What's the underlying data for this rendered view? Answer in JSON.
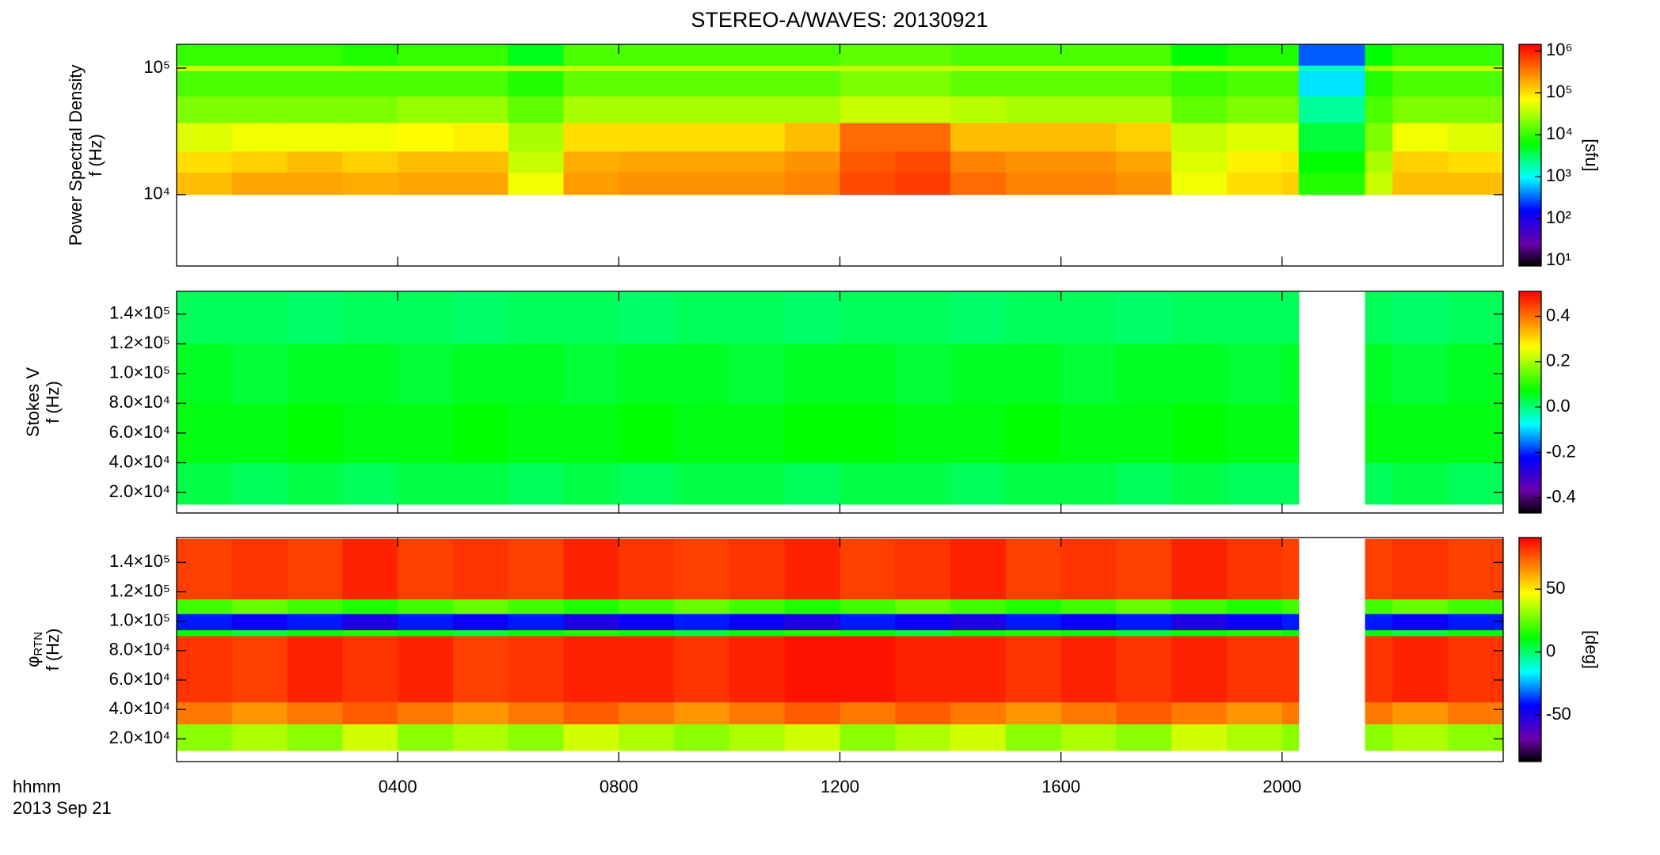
{
  "chart_data": [
    {
      "type": "heatmap",
      "title": "STEREO-A/WAVES: 20130921",
      "quantity": "Power Spectral Density",
      "ylabel": "f (Hz)",
      "xlim": [
        0,
        24
      ],
      "xticks": [
        4,
        8,
        12,
        16,
        20
      ],
      "ylog": true,
      "ylim": [
        2730,
        154000
      ],
      "yticks": [
        {
          "value": 10000,
          "label": "10⁴"
        },
        {
          "value": 100000,
          "label": "10⁵"
        }
      ],
      "x_edges": [
        0,
        1,
        2,
        3,
        4,
        5,
        6,
        7,
        8,
        9,
        10,
        11,
        12,
        13,
        14,
        15,
        16,
        17,
        18,
        19,
        20,
        20.3,
        21.5,
        22,
        23,
        24
      ],
      "y_edges": [
        10000,
        15000,
        22000,
        37000,
        60000,
        95000,
        105000,
        154000
      ],
      "z": [
        [
          150000,
          200000,
          200000,
          180000,
          200000,
          200000,
          60000,
          220000,
          250000,
          250000,
          250000,
          300000,
          600000,
          700000,
          400000,
          300000,
          300000,
          250000,
          60000,
          100000,
          120000,
          8000,
          40000,
          150000,
          150000
        ],
        [
          100000,
          120000,
          150000,
          120000,
          150000,
          150000,
          40000,
          180000,
          200000,
          200000,
          200000,
          250000,
          500000,
          600000,
          300000,
          250000,
          250000,
          200000,
          50000,
          80000,
          90000,
          6000,
          30000,
          120000,
          100000
        ],
        [
          50000,
          60000,
          60000,
          60000,
          70000,
          80000,
          30000,
          100000,
          100000,
          100000,
          100000,
          150000,
          400000,
          400000,
          150000,
          150000,
          150000,
          120000,
          40000,
          50000,
          50000,
          4000,
          20000,
          60000,
          50000
        ],
        [
          20000,
          20000,
          20000,
          20000,
          25000,
          25000,
          15000,
          30000,
          30000,
          30000,
          30000,
          30000,
          40000,
          40000,
          35000,
          30000,
          30000,
          30000,
          15000,
          20000,
          20000,
          2000,
          12000,
          20000,
          20000
        ],
        [
          12000,
          12000,
          12000,
          12000,
          12000,
          12000,
          8000,
          15000,
          15000,
          15000,
          15000,
          15000,
          20000,
          20000,
          15000,
          15000,
          15000,
          15000,
          10000,
          12000,
          12000,
          800,
          8000,
          12000,
          12000
        ],
        [
          40000,
          40000,
          40000,
          40000,
          40000,
          40000,
          40000,
          40000,
          40000,
          40000,
          40000,
          40000,
          40000,
          40000,
          40000,
          40000,
          40000,
          40000,
          40000,
          40000,
          40000,
          1500,
          30000,
          40000,
          40000
        ],
        [
          10000,
          10000,
          10000,
          8000,
          10000,
          10000,
          5000,
          12000,
          12000,
          12000,
          12000,
          12000,
          15000,
          15000,
          12000,
          12000,
          12000,
          12000,
          6000,
          8000,
          8000,
          300,
          6000,
          10000,
          10000
        ]
      ],
      "clog": true,
      "clim": [
        7.4,
        1430000
      ],
      "cticks": [
        {
          "value": 10,
          "label": "10¹"
        },
        {
          "value": 100,
          "label": "10²"
        },
        {
          "value": 1000,
          "label": "10³"
        },
        {
          "value": 10000,
          "label": "10⁴"
        },
        {
          "value": 100000,
          "label": "10⁵"
        },
        {
          "value": 1000000,
          "label": "10⁶"
        }
      ],
      "clabel": "[sfu]",
      "colorscale": [
        [
          0,
          "#000000"
        ],
        [
          0.1,
          "#6a00a8"
        ],
        [
          0.25,
          "#0000ff"
        ],
        [
          0.4,
          "#00ffff"
        ],
        [
          0.55,
          "#00ff00"
        ],
        [
          0.75,
          "#ffff00"
        ],
        [
          1,
          "#ff0000"
        ]
      ]
    },
    {
      "type": "heatmap",
      "quantity": "Stokes V",
      "ylabel": "f (Hz)",
      "xlim": [
        0,
        24
      ],
      "xticks": [
        4,
        8,
        12,
        16,
        20
      ],
      "ylog": false,
      "ylim": [
        6200,
        155300
      ],
      "yticks": [
        {
          "value": 20000,
          "label": "2.0×10⁴"
        },
        {
          "value": 40000,
          "label": "4.0×10⁴"
        },
        {
          "value": 60000,
          "label": "6.0×10⁴"
        },
        {
          "value": 80000,
          "label": "8.0×10⁴"
        },
        {
          "value": 100000,
          "label": "1.0×10⁵"
        },
        {
          "value": 120000,
          "label": "1.2×10⁵"
        },
        {
          "value": 140000,
          "label": "1.4×10⁵"
        }
      ],
      "x_edges": [
        0,
        1,
        2,
        3,
        4,
        5,
        6,
        7,
        8,
        9,
        10,
        11,
        12,
        13,
        14,
        15,
        16,
        17,
        18,
        19,
        20,
        20.3,
        21.5,
        22,
        23,
        24
      ],
      "y_edges": [
        12000,
        40000,
        80000,
        120000,
        155000
      ],
      "z": [
        [
          0.03,
          0.02,
          0.03,
          0.02,
          0.03,
          0.03,
          0.02,
          0.03,
          0.02,
          0.03,
          0.03,
          0.02,
          0.03,
          0.03,
          0.02,
          0.03,
          0.03,
          0.02,
          0.03,
          0.02,
          0.02,
          null,
          0.02,
          0.03,
          0.02
        ],
        [
          0.06,
          0.06,
          0.07,
          0.06,
          0.06,
          0.07,
          0.06,
          0.06,
          0.07,
          0.06,
          0.06,
          0.07,
          0.07,
          0.06,
          0.06,
          0.07,
          0.06,
          0.06,
          0.07,
          0.06,
          0.06,
          null,
          0.06,
          0.06,
          0.06
        ],
        [
          0.05,
          0.04,
          0.05,
          0.05,
          0.04,
          0.05,
          0.05,
          0.04,
          0.05,
          0.05,
          0.04,
          0.05,
          0.05,
          0.04,
          0.05,
          0.05,
          0.04,
          0.05,
          0.05,
          0.04,
          0.05,
          null,
          0.05,
          0.04,
          0.05
        ],
        [
          0.02,
          0.02,
          0.01,
          0.02,
          0.02,
          0.01,
          0.02,
          0.02,
          0.01,
          0.02,
          0.02,
          0.01,
          0.02,
          0.02,
          0.01,
          0.02,
          0.02,
          0.01,
          0.02,
          0.02,
          0.02,
          null,
          0.02,
          0.01,
          0.02
        ]
      ],
      "clog": false,
      "clim": [
        -0.467,
        0.51
      ],
      "cticks": [
        -0.4,
        -0.2,
        {
          "value": 0,
          "label": "0.0"
        },
        0.2,
        0.4
      ],
      "colorscale": [
        [
          0,
          "#000000"
        ],
        [
          0.1,
          "#6a00a8"
        ],
        [
          0.25,
          "#0000ff"
        ],
        [
          0.4,
          "#00ffff"
        ],
        [
          0.55,
          "#00ff00"
        ],
        [
          0.75,
          "#ffff00"
        ],
        [
          1,
          "#ff0000"
        ]
      ]
    },
    {
      "type": "heatmap",
      "quantity": "φ",
      "quantity_subscript": "RTN",
      "ylabel": "f (Hz)",
      "xlim": [
        0,
        24
      ],
      "xticks": [
        {
          "value": 4,
          "label": "0400"
        },
        {
          "value": 8,
          "label": "0800"
        },
        {
          "value": 12,
          "label": "1200"
        },
        {
          "value": 16,
          "label": "1600"
        },
        {
          "value": 20,
          "label": "2000"
        }
      ],
      "x_label": "hhmm",
      "x_sublabel": "2013 Sep 21",
      "ylog": false,
      "ylim": [
        4540,
        156900
      ],
      "yticks": [
        {
          "value": 20000,
          "label": "2.0×10⁴"
        },
        {
          "value": 40000,
          "label": "4.0×10⁴"
        },
        {
          "value": 60000,
          "label": "6.0×10⁴"
        },
        {
          "value": 80000,
          "label": "8.0×10⁴"
        },
        {
          "value": 100000,
          "label": "1.0×10⁵"
        },
        {
          "value": 120000,
          "label": "1.2×10⁵"
        },
        {
          "value": 140000,
          "label": "1.4×10⁵"
        }
      ],
      "x_edges": [
        0,
        1,
        2,
        3,
        4,
        5,
        6,
        7,
        8,
        9,
        10,
        11,
        12,
        13,
        14,
        15,
        16,
        17,
        18,
        19,
        20,
        20.3,
        21.5,
        22,
        23,
        24
      ],
      "y_edges": [
        12000,
        30000,
        45000,
        90000,
        94000,
        105000,
        115000,
        156000
      ],
      "z": [
        [
          30,
          35,
          30,
          40,
          30,
          35,
          30,
          40,
          35,
          30,
          35,
          40,
          30,
          35,
          40,
          30,
          35,
          30,
          40,
          35,
          30,
          null,
          30,
          35,
          30
        ],
        [
          70,
          65,
          70,
          75,
          70,
          65,
          70,
          75,
          70,
          65,
          70,
          75,
          70,
          75,
          70,
          65,
          70,
          75,
          70,
          65,
          70,
          null,
          70,
          65,
          70
        ],
        [
          82,
          80,
          85,
          82,
          85,
          80,
          82,
          85,
          85,
          82,
          85,
          88,
          88,
          85,
          85,
          82,
          85,
          82,
          85,
          82,
          82,
          null,
          82,
          85,
          82
        ],
        [
          10,
          5,
          10,
          15,
          10,
          5,
          10,
          15,
          10,
          5,
          10,
          15,
          10,
          5,
          10,
          15,
          10,
          5,
          10,
          15,
          10,
          null,
          10,
          5,
          10
        ],
        [
          -40,
          -45,
          -40,
          -50,
          -40,
          -45,
          -40,
          -50,
          -45,
          -40,
          -45,
          -50,
          -40,
          -45,
          -50,
          -40,
          -45,
          -40,
          -50,
          -45,
          -40,
          null,
          -40,
          -45,
          -40
        ],
        [
          20,
          25,
          20,
          15,
          20,
          25,
          20,
          15,
          20,
          25,
          20,
          15,
          20,
          25,
          20,
          15,
          20,
          25,
          20,
          15,
          20,
          null,
          20,
          25,
          20
        ],
        [
          80,
          82,
          80,
          85,
          80,
          82,
          80,
          85,
          82,
          80,
          82,
          85,
          80,
          82,
          85,
          80,
          82,
          80,
          85,
          82,
          80,
          null,
          80,
          82,
          80
        ]
      ],
      "clog": false,
      "clim": [
        -87,
        91
      ],
      "cticks": [
        -50,
        0,
        50
      ],
      "clabel": "[deg]",
      "colorscale": [
        [
          0,
          "#000000"
        ],
        [
          0.1,
          "#6a00a8"
        ],
        [
          0.25,
          "#0000ff"
        ],
        [
          0.4,
          "#00ffff"
        ],
        [
          0.55,
          "#00ff00"
        ],
        [
          0.75,
          "#ffff00"
        ],
        [
          1,
          "#ff0000"
        ]
      ]
    }
  ]
}
